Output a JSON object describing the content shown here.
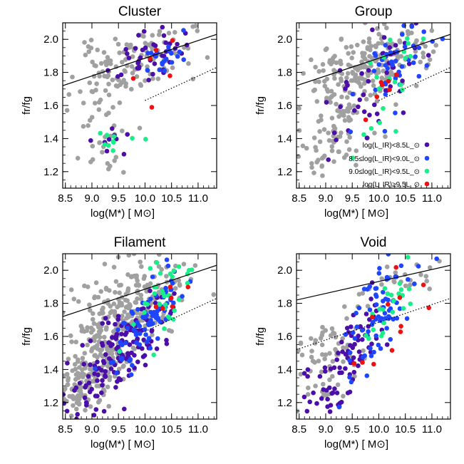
{
  "colors": {
    "gray": "#a0a0a0",
    "purple": "#4b0ea8",
    "blue": "#1e46ff",
    "green": "#19ee88",
    "red": "#ee1111"
  },
  "legend": {
    "entries": [
      {
        "label": "log(L_IR)<8.5L_⊙",
        "color": "#4b0ea8"
      },
      {
        "label": "8.5≤log(L_IR)<9.0L_⊙",
        "color": "#1e46ff"
      },
      {
        "label": "9.0≤log(L_IR)<9.5L_⊙",
        "color": "#19ee88"
      },
      {
        "label": "log(L_IR)≥9.5L_⊙",
        "color": "#ee1111"
      }
    ]
  },
  "chart_data": [
    {
      "type": "scatter",
      "title": "Cluster",
      "xlabel": "log(M*) [ M⊙]",
      "ylabel": "fr/fg",
      "xlim": [
        8.45,
        11.35
      ],
      "ylim": [
        1.1,
        2.1
      ],
      "xticks": [
        8.5,
        9.0,
        9.5,
        10.0,
        10.5,
        11.0
      ],
      "xtick_labels": [
        "8.5",
        "9.0",
        "9.5",
        "10.0",
        "10.5",
        "11.0"
      ],
      "yticks": [
        1.2,
        1.4,
        1.6,
        1.8,
        2.0
      ],
      "ytick_labels": [
        "1.2",
        "1.4",
        "1.6",
        "1.8",
        "2.0"
      ],
      "lines": [
        {
          "style": "solid",
          "x": [
            8.45,
            11.35
          ],
          "y": [
            1.72,
            2.03
          ]
        },
        {
          "style": "dotted",
          "x": [
            10.0,
            11.35
          ],
          "y": [
            1.63,
            1.83
          ]
        }
      ],
      "seed": 11,
      "groups": [
        {
          "color": "gray",
          "n": 130,
          "xmu": 9.7,
          "xsd": 0.55,
          "ymu": 1.84,
          "ysd": 0.1,
          "slope": 0.1
        },
        {
          "color": "gray",
          "n": 30,
          "xmu": 9.2,
          "xsd": 0.25,
          "ymu": 1.38,
          "ysd": 0.15,
          "slope": 0.1
        },
        {
          "color": "purple",
          "n": 40,
          "xmu": 10.1,
          "xsd": 0.35,
          "ymu": 1.9,
          "ysd": 0.07,
          "slope": 0.1
        },
        {
          "color": "purple",
          "n": 10,
          "xmu": 9.35,
          "xsd": 0.15,
          "ymu": 1.38,
          "ysd": 0.06,
          "slope": 0.1
        },
        {
          "color": "blue",
          "n": 22,
          "xmu": 10.3,
          "xsd": 0.25,
          "ymu": 1.88,
          "ysd": 0.08,
          "slope": 0.1
        },
        {
          "color": "green",
          "n": 10,
          "xmu": 9.55,
          "xsd": 0.25,
          "ymu": 1.4,
          "ysd": 0.07,
          "slope": 0.1
        },
        {
          "color": "red",
          "n": 6,
          "xmu": 10.3,
          "xsd": 0.25,
          "ymu": 1.85,
          "ysd": 0.12,
          "slope": 0.1
        }
      ]
    },
    {
      "type": "scatter",
      "title": "Group",
      "xlabel": "log(M*) [ M⊙]",
      "ylabel": "fr/fg",
      "xlim": [
        8.45,
        11.35
      ],
      "ylim": [
        1.1,
        2.1
      ],
      "xticks": [
        8.5,
        9.0,
        9.5,
        10.0,
        10.5,
        11.0
      ],
      "xtick_labels": [
        "8.5",
        "9.0",
        "9.5",
        "10.0",
        "10.5",
        "11.0"
      ],
      "yticks": [
        1.2,
        1.4,
        1.6,
        1.8,
        2.0
      ],
      "ytick_labels": [
        "1.2",
        "1.4",
        "1.6",
        "1.8",
        "2.0"
      ],
      "lines": [
        {
          "style": "solid",
          "x": [
            8.45,
            11.35
          ],
          "y": [
            1.72,
            2.03
          ]
        },
        {
          "style": "dotted",
          "x": [
            10.0,
            11.35
          ],
          "y": [
            1.63,
            1.83
          ]
        }
      ],
      "seed": 23,
      "groups": [
        {
          "color": "gray",
          "n": 200,
          "xmu": 9.75,
          "xsd": 0.55,
          "ymu": 1.82,
          "ysd": 0.11,
          "slope": 0.1
        },
        {
          "color": "gray",
          "n": 90,
          "xmu": 9.1,
          "xsd": 0.3,
          "ymu": 1.45,
          "ysd": 0.15,
          "slope": 0.2
        },
        {
          "color": "purple",
          "n": 55,
          "xmu": 10.0,
          "xsd": 0.45,
          "ymu": 1.72,
          "ysd": 0.18,
          "slope": 0.3
        },
        {
          "color": "blue",
          "n": 45,
          "xmu": 10.3,
          "xsd": 0.35,
          "ymu": 1.85,
          "ysd": 0.13,
          "slope": 0.25
        },
        {
          "color": "green",
          "n": 22,
          "xmu": 10.1,
          "xsd": 0.3,
          "ymu": 1.75,
          "ysd": 0.14,
          "slope": 0.25
        },
        {
          "color": "red",
          "n": 7,
          "xmu": 10.05,
          "xsd": 0.2,
          "ymu": 1.7,
          "ysd": 0.07,
          "slope": 0.2
        }
      ]
    },
    {
      "type": "scatter",
      "title": "Filament",
      "xlabel": "log(M*) [ M⊙]",
      "ylabel": "fr/fg",
      "xlim": [
        8.45,
        11.35
      ],
      "ylim": [
        1.1,
        2.1
      ],
      "xticks": [
        8.5,
        9.0,
        9.5,
        10.0,
        10.5,
        11.0
      ],
      "xtick_labels": [
        "8.5",
        "9.0",
        "9.5",
        "10.0",
        "10.5",
        "11.0"
      ],
      "yticks": [
        1.2,
        1.4,
        1.6,
        1.8,
        2.0
      ],
      "ytick_labels": [
        "1.2",
        "1.4",
        "1.6",
        "1.8",
        "2.0"
      ],
      "lines": [
        {
          "style": "solid",
          "x": [
            8.45,
            11.35
          ],
          "y": [
            1.72,
            2.03
          ]
        },
        {
          "style": "dotted",
          "x": [
            10.0,
            11.35
          ],
          "y": [
            1.63,
            1.83
          ]
        }
      ],
      "seed": 37,
      "groups": [
        {
          "color": "gray",
          "n": 260,
          "xmu": 9.7,
          "xsd": 0.55,
          "ymu": 1.78,
          "ysd": 0.14,
          "slope": 0.15
        },
        {
          "color": "gray",
          "n": 170,
          "xmu": 9.0,
          "xsd": 0.35,
          "ymu": 1.38,
          "ysd": 0.1,
          "slope": 0.25
        },
        {
          "color": "purple",
          "n": 150,
          "xmu": 9.5,
          "xsd": 0.45,
          "ymu": 1.48,
          "ysd": 0.12,
          "slope": 0.3
        },
        {
          "color": "blue",
          "n": 85,
          "xmu": 10.0,
          "xsd": 0.4,
          "ymu": 1.7,
          "ysd": 0.12,
          "slope": 0.35
        },
        {
          "color": "green",
          "n": 35,
          "xmu": 10.3,
          "xsd": 0.3,
          "ymu": 1.85,
          "ysd": 0.1,
          "slope": 0.3
        },
        {
          "color": "red",
          "n": 6,
          "xmu": 10.45,
          "xsd": 0.2,
          "ymu": 1.9,
          "ysd": 0.12,
          "slope": 0.2
        }
      ]
    },
    {
      "type": "scatter",
      "title": "Void",
      "xlabel": "log(M*) [ M⊙]",
      "ylabel": "fr/fg",
      "xlim": [
        8.45,
        11.35
      ],
      "ylim": [
        1.1,
        2.1
      ],
      "xticks": [
        8.5,
        9.0,
        9.5,
        10.0,
        10.5,
        11.0
      ],
      "xtick_labels": [
        "8.5",
        "9.0",
        "9.5",
        "10.0",
        "10.5",
        "11.0"
      ],
      "yticks": [
        1.2,
        1.4,
        1.6,
        1.8,
        2.0
      ],
      "ytick_labels": [
        "1.2",
        "1.4",
        "1.6",
        "1.8",
        "2.0"
      ],
      "lines": [
        {
          "style": "solid",
          "x": [
            8.45,
            11.35
          ],
          "y": [
            1.82,
            2.03
          ]
        },
        {
          "style": "dotted",
          "x": [
            8.45,
            11.35
          ],
          "y": [
            1.52,
            1.83
          ]
        }
      ],
      "seed": 53,
      "groups": [
        {
          "color": "gray",
          "n": 70,
          "xmu": 9.0,
          "xsd": 0.35,
          "ymu": 1.45,
          "ysd": 0.12,
          "slope": 0.15
        },
        {
          "color": "gray",
          "n": 25,
          "xmu": 10.4,
          "xsd": 0.5,
          "ymu": 1.93,
          "ysd": 0.07,
          "slope": 0.1
        },
        {
          "color": "purple",
          "n": 90,
          "xmu": 9.35,
          "xsd": 0.35,
          "ymu": 1.45,
          "ysd": 0.12,
          "slope": 0.35
        },
        {
          "color": "blue",
          "n": 75,
          "xmu": 9.95,
          "xsd": 0.35,
          "ymu": 1.72,
          "ysd": 0.14,
          "slope": 0.35
        },
        {
          "color": "green",
          "n": 22,
          "xmu": 10.2,
          "xsd": 0.25,
          "ymu": 1.78,
          "ysd": 0.1,
          "slope": 0.3
        },
        {
          "color": "red",
          "n": 12,
          "xmu": 10.25,
          "xsd": 0.3,
          "ymu": 1.72,
          "ysd": 0.18,
          "slope": 0.3
        }
      ]
    }
  ]
}
